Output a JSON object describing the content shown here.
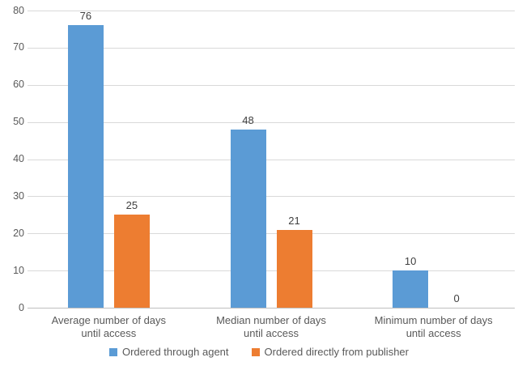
{
  "chart_data": {
    "type": "bar",
    "title": "",
    "xlabel": "",
    "ylabel": "",
    "categories": [
      "Average number of days\nuntil access",
      "Median number of days\nuntil access",
      "Minimum number of days\nuntil access"
    ],
    "series": [
      {
        "name": "Ordered through agent",
        "color": "#5B9BD5",
        "values": [
          76,
          48,
          10
        ]
      },
      {
        "name": "Ordered directly from publisher",
        "color": "#ED7D31",
        "values": [
          25,
          21,
          0
        ]
      }
    ],
    "ylim": [
      0,
      80
    ],
    "ytick_step": 10,
    "grid": true,
    "legend_position": "bottom",
    "background_color": "#FFFFFF",
    "gridline_color": "#D9D9D9",
    "axis_line_color": "#BFBFBF",
    "label_color": "#595959",
    "data_label_color": "#404040"
  }
}
